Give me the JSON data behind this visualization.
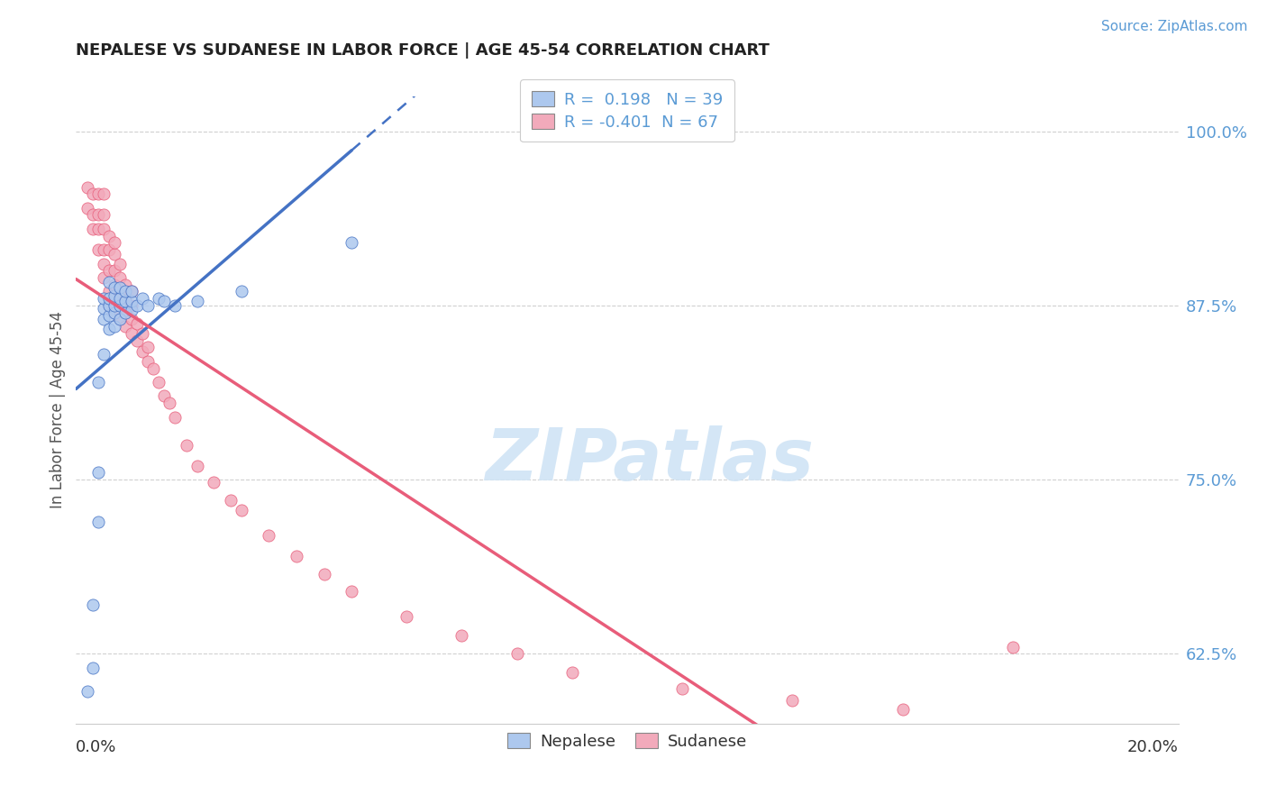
{
  "title": "NEPALESE VS SUDANESE IN LABOR FORCE | AGE 45-54 CORRELATION CHART",
  "source": "Source: ZipAtlas.com",
  "ylabel": "In Labor Force | Age 45-54",
  "xlim": [
    0.0,
    0.2
  ],
  "ylim": [
    0.575,
    1.025
  ],
  "yticks": [
    0.625,
    0.75,
    0.875,
    1.0
  ],
  "ytick_labels": [
    "62.5%",
    "75.0%",
    "87.5%",
    "100.0%"
  ],
  "nepalese_R": 0.198,
  "nepalese_N": 39,
  "sudanese_R": -0.401,
  "sudanese_N": 67,
  "nepalese_color": "#adc8ee",
  "sudanese_color": "#f2aabb",
  "nepalese_line_color": "#4472c4",
  "sudanese_line_color": "#e85d7a",
  "watermark_color": "#d0e4f5",
  "nepalese_x": [
    0.002,
    0.003,
    0.003,
    0.004,
    0.004,
    0.004,
    0.005,
    0.005,
    0.005,
    0.005,
    0.006,
    0.006,
    0.006,
    0.006,
    0.006,
    0.007,
    0.007,
    0.007,
    0.007,
    0.007,
    0.008,
    0.008,
    0.008,
    0.008,
    0.009,
    0.009,
    0.009,
    0.01,
    0.01,
    0.01,
    0.011,
    0.012,
    0.013,
    0.015,
    0.016,
    0.018,
    0.022,
    0.03,
    0.05
  ],
  "nepalese_y": [
    0.598,
    0.615,
    0.66,
    0.72,
    0.755,
    0.82,
    0.84,
    0.865,
    0.873,
    0.88,
    0.858,
    0.868,
    0.875,
    0.88,
    0.892,
    0.86,
    0.87,
    0.875,
    0.882,
    0.888,
    0.865,
    0.875,
    0.88,
    0.888,
    0.87,
    0.878,
    0.885,
    0.872,
    0.878,
    0.885,
    0.875,
    0.88,
    0.875,
    0.88,
    0.878,
    0.875,
    0.878,
    0.885,
    0.92
  ],
  "sudanese_x": [
    0.002,
    0.002,
    0.003,
    0.003,
    0.003,
    0.004,
    0.004,
    0.004,
    0.004,
    0.005,
    0.005,
    0.005,
    0.005,
    0.005,
    0.005,
    0.006,
    0.006,
    0.006,
    0.006,
    0.006,
    0.007,
    0.007,
    0.007,
    0.007,
    0.007,
    0.007,
    0.008,
    0.008,
    0.008,
    0.008,
    0.008,
    0.009,
    0.009,
    0.009,
    0.009,
    0.01,
    0.01,
    0.01,
    0.01,
    0.011,
    0.011,
    0.012,
    0.012,
    0.013,
    0.013,
    0.014,
    0.015,
    0.016,
    0.017,
    0.018,
    0.02,
    0.022,
    0.025,
    0.028,
    0.03,
    0.035,
    0.04,
    0.045,
    0.05,
    0.06,
    0.07,
    0.08,
    0.09,
    0.11,
    0.13,
    0.15,
    0.17
  ],
  "sudanese_y": [
    0.945,
    0.96,
    0.93,
    0.94,
    0.955,
    0.915,
    0.93,
    0.94,
    0.955,
    0.895,
    0.905,
    0.915,
    0.93,
    0.94,
    0.955,
    0.875,
    0.885,
    0.9,
    0.915,
    0.925,
    0.87,
    0.88,
    0.89,
    0.9,
    0.912,
    0.92,
    0.865,
    0.875,
    0.885,
    0.895,
    0.905,
    0.86,
    0.87,
    0.878,
    0.89,
    0.855,
    0.865,
    0.875,
    0.885,
    0.85,
    0.862,
    0.842,
    0.855,
    0.835,
    0.845,
    0.83,
    0.82,
    0.81,
    0.805,
    0.795,
    0.775,
    0.76,
    0.748,
    0.735,
    0.728,
    0.71,
    0.695,
    0.682,
    0.67,
    0.652,
    0.638,
    0.625,
    0.612,
    0.6,
    0.592,
    0.585,
    0.63
  ]
}
